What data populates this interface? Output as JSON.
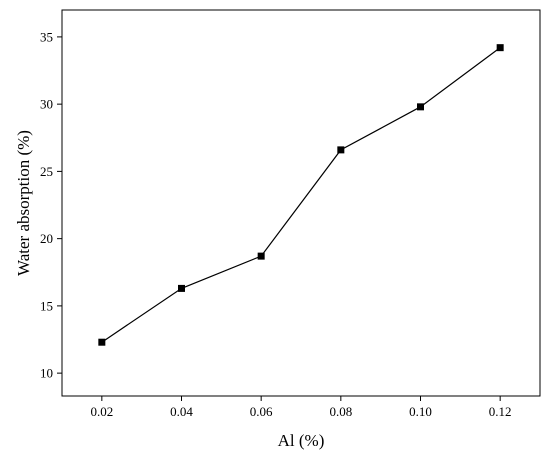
{
  "chart_data": {
    "type": "line",
    "title": "",
    "xlabel": "Al (%)",
    "ylabel": "Water absorption (%)",
    "x": [
      0.02,
      0.04,
      0.06,
      0.08,
      0.1,
      0.12
    ],
    "x_tick_labels": [
      "0.02",
      "0.04",
      "0.06",
      "0.08",
      "0.10",
      "0.12"
    ],
    "y_ticks": [
      10,
      15,
      20,
      25,
      30,
      35
    ],
    "xlim": [
      0.01,
      0.13
    ],
    "ylim": [
      8.3,
      37
    ],
    "grid": false,
    "legend": "none",
    "marker": "square",
    "colors": {
      "line": "#000000",
      "marker": "#000000"
    },
    "series": [
      {
        "values": [
          12.3,
          16.3,
          18.7,
          26.6,
          29.8,
          34.2
        ]
      }
    ]
  }
}
